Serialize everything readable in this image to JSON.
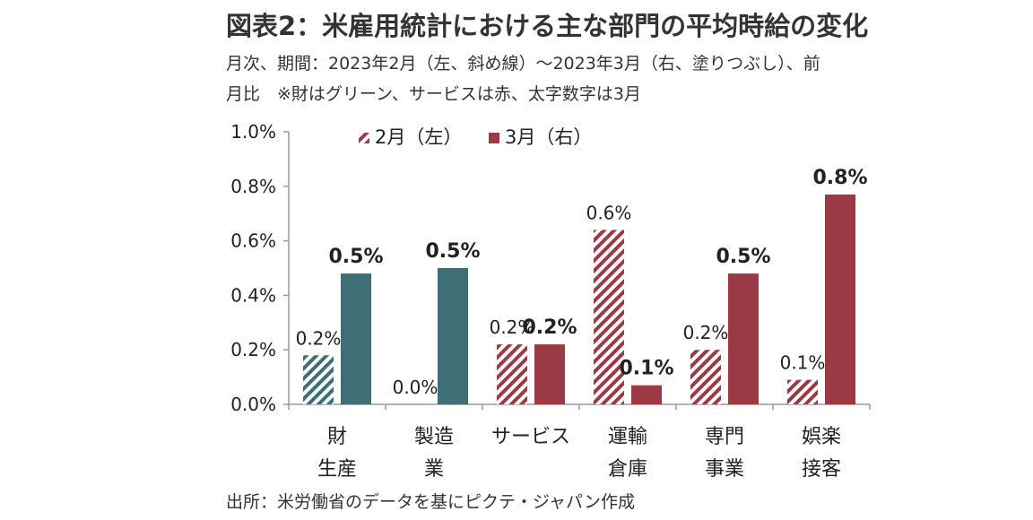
{
  "header": {
    "title": "図表2：米雇用統計における主な部門の平均時給の変化",
    "subtitle_line1": "月次、期間：2023年2月（左、斜め線）～2023年3月（右、塗りつぶし）、前",
    "subtitle_line2": "月比　※財はグリーン、サービスは赤、太字数字は3月"
  },
  "footer": {
    "source": "出所：米労働省のデータを基にピクテ・ジャパン作成"
  },
  "colors": {
    "goods": "#3f6e74",
    "services": "#9b3a44",
    "axis": "#9a9a9a"
  },
  "chart_data": {
    "type": "bar",
    "categories": [
      [
        "財",
        "生産"
      ],
      [
        "製造",
        "業"
      ],
      [
        "サービス"
      ],
      [
        "運輸",
        "倉庫"
      ],
      [
        "専門",
        "事業"
      ],
      [
        "娯楽",
        "接客"
      ]
    ],
    "category_group": [
      "goods",
      "goods",
      "services",
      "services",
      "services",
      "services"
    ],
    "series": [
      {
        "name": "2月（左）",
        "values": [
          0.18,
          0.0,
          0.22,
          0.64,
          0.2,
          0.09
        ],
        "labels": [
          "0.2%",
          "0.0%",
          "0.2%",
          "0.6%",
          "0.2%",
          "0.1%"
        ],
        "style": "hatched"
      },
      {
        "name": "3月（右）",
        "values": [
          0.48,
          0.5,
          0.22,
          0.07,
          0.48,
          0.77
        ],
        "labels": [
          "0.5%",
          "0.5%",
          "0.2%",
          "0.1%",
          "0.5%",
          "0.8%"
        ],
        "style": "solid"
      }
    ],
    "yticks": [
      "0.0%",
      "0.2%",
      "0.4%",
      "0.6%",
      "0.8%",
      "1.0%"
    ],
    "ylim": [
      0,
      1.0
    ],
    "legend": "top-center",
    "grid": false
  }
}
